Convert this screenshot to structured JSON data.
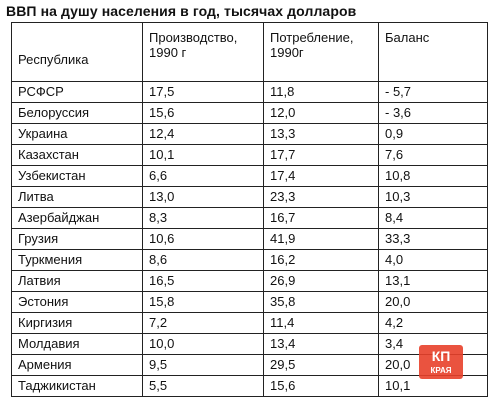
{
  "title": "ВВП на душу населения в год, тысячах долларов",
  "table": {
    "headers": [
      "Республика",
      "Производство, 1990 г",
      "Потребление, 1990г",
      "Баланс"
    ],
    "rows": [
      [
        "РСФСР",
        "17,5",
        "11,8",
        "- 5,7"
      ],
      [
        "Белоруссия",
        "15,6",
        "12,0",
        "- 3,6"
      ],
      [
        "Украина",
        "12,4",
        "13,3",
        "0,9"
      ],
      [
        "Казахстан",
        "10,1",
        "17,7",
        "7,6"
      ],
      [
        "Узбекистан",
        "6,6",
        "17,4",
        "10,8"
      ],
      [
        "Литва",
        "13,0",
        "23,3",
        "10,3"
      ],
      [
        "Азербайджан",
        "8,3",
        "16,7",
        "8,4"
      ],
      [
        "Грузия",
        "10,6",
        "41,9",
        "33,3"
      ],
      [
        "Туркмения",
        "8,6",
        "16,2",
        "4,0"
      ],
      [
        "Латвия",
        "16,5",
        "26,9",
        "13,1"
      ],
      [
        "Эстония",
        "15,8",
        "35,8",
        "20,0"
      ],
      [
        "Киргизия",
        "7,2",
        "11,4",
        "4,2"
      ],
      [
        "Молдавия",
        "10,0",
        "13,4",
        "3,4"
      ],
      [
        "Армения",
        "9,5",
        "29,5",
        "20,0"
      ],
      [
        "Таджикистан",
        "5,5",
        "15,6",
        "10,1"
      ]
    ]
  },
  "logo": {
    "top_text": "КП",
    "bottom_text": "КРАЯ",
    "color": "#e8402a"
  }
}
